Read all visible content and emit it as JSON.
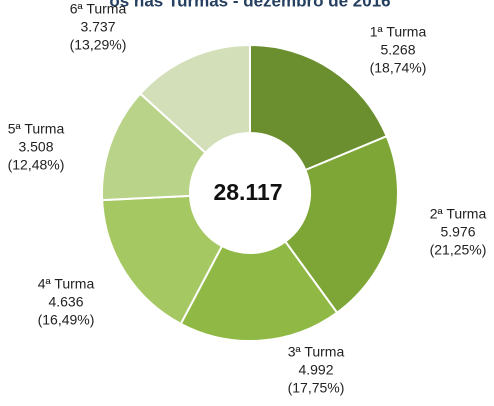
{
  "chart_data": {
    "type": "donut",
    "title": "os nas Turmas - dezembro de 2016",
    "center_label": "28.117",
    "categories": [
      "1ª Turma",
      "2ª Turma",
      "3ª Turma",
      "4ª Turma",
      "5ª Turma",
      "6ª Turma"
    ],
    "values": [
      5268,
      5976,
      4992,
      4636,
      3508,
      3737
    ],
    "value_labels": [
      "5.268",
      "5.976",
      "4.992",
      "4.636",
      "3.508",
      "3.737"
    ],
    "percent_labels": [
      "(18,74%)",
      "(21,25%)",
      "(17,75%)",
      "(16,49%)",
      "(12,48%)",
      "(13,29%)"
    ],
    "colors": [
      "#6b8f2e",
      "#7da637",
      "#8fb944",
      "#a6c862",
      "#b9d388",
      "#d2dfb8"
    ]
  }
}
